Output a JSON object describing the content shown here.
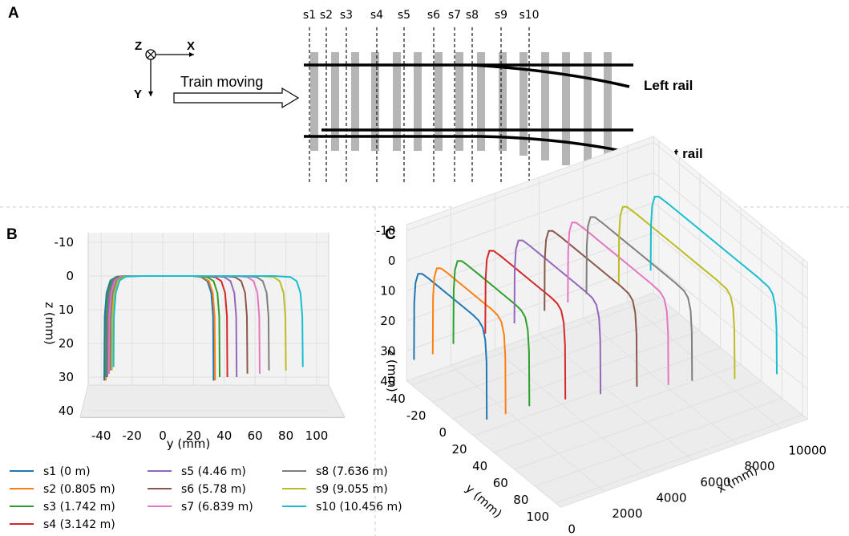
{
  "panel_labels": {
    "a": "A",
    "b": "B",
    "c": "C"
  },
  "schematic": {
    "section_labels": [
      "s1",
      "s2",
      "s3",
      "s4",
      "s5",
      "s6",
      "s7",
      "s8",
      "s9",
      "s10"
    ],
    "left_rail_label": "Left rail",
    "right_rail_label": "Right rail",
    "train_label": "Train moving",
    "axis_letters": {
      "z": "Z",
      "x": "X",
      "y": "Y"
    }
  },
  "chart_data": [
    {
      "type": "line",
      "panel": "B",
      "title": "",
      "xlabel": "y (mm)",
      "ylabel": "z (mm)",
      "xlim": [
        -45,
        105
      ],
      "ylim": [
        40,
        -12
      ],
      "x_ticks": [
        -40,
        -20,
        0,
        20,
        40,
        60,
        80,
        100
      ],
      "y_ticks": [
        -10,
        0,
        10,
        20,
        30,
        40
      ],
      "grid": true,
      "series": [
        {
          "name": "s1 (0 m)",
          "color": "#1f77b4",
          "outer_end": -38,
          "shift": 0,
          "depth": 31
        },
        {
          "name": "s2 (0.805 m)",
          "color": "#ff7f0e",
          "outer_end": -37,
          "shift": 1,
          "depth": 31
        },
        {
          "name": "s3 (1.742 m)",
          "color": "#2ca02c",
          "outer_end": -37,
          "shift": 4,
          "depth": 30
        },
        {
          "name": "s4 (3.142 m)",
          "color": "#d62728",
          "outer_end": -36,
          "shift": 9,
          "depth": 30
        },
        {
          "name": "s5 (4.46 m)",
          "color": "#9467bd",
          "outer_end": -36,
          "shift": 15,
          "depth": 30
        },
        {
          "name": "s6 (5.78 m)",
          "color": "#8c564b",
          "outer_end": -35,
          "shift": 22,
          "depth": 29
        },
        {
          "name": "s7 (6.839 m)",
          "color": "#e377c2",
          "outer_end": -35,
          "shift": 30,
          "depth": 29
        },
        {
          "name": "s8 (7.636 m)",
          "color": "#7f7f7f",
          "outer_end": -34,
          "shift": 36,
          "depth": 28
        },
        {
          "name": "s9 (9.055 m)",
          "color": "#bcbd22",
          "outer_end": -33,
          "shift": 47,
          "depth": 28
        },
        {
          "name": "s10 (10.456 m)",
          "color": "#17becf",
          "outer_end": -32,
          "shift": 58,
          "depth": 27
        }
      ]
    },
    {
      "type": "line",
      "panel": "C",
      "title": "",
      "xlabel": "x (mm)",
      "ylabel": "y (mm)",
      "zlabel": "z (mm)",
      "x_ticks": [
        0,
        2000,
        4000,
        6000,
        8000,
        10000
      ],
      "y_ticks": [
        -40,
        -20,
        0,
        20,
        40,
        60,
        80,
        100
      ],
      "z_ticks": [
        -10,
        0,
        10,
        20,
        30,
        40
      ],
      "x_values": [
        0,
        805,
        1742,
        3142,
        4460,
        5780,
        6839,
        7636,
        9055,
        10456
      ],
      "grid": true
    }
  ],
  "legend": [
    {
      "label": "s1 (0 m)",
      "color": "#1f77b4"
    },
    {
      "label": "s2 (0.805 m)",
      "color": "#ff7f0e"
    },
    {
      "label": "s3 (1.742 m)",
      "color": "#2ca02c"
    },
    {
      "label": "s4 (3.142 m)",
      "color": "#d62728"
    },
    {
      "label": "s5 (4.46 m)",
      "color": "#9467bd"
    },
    {
      "label": "s6 (5.78 m)",
      "color": "#8c564b"
    },
    {
      "label": "s7 (6.839 m)",
      "color": "#e377c2"
    },
    {
      "label": "s8 (7.636 m)",
      "color": "#7f7f7f"
    },
    {
      "label": "s9 (9.055 m)",
      "color": "#bcbd22"
    },
    {
      "label": "s10 (10.456 m)",
      "color": "#17becf"
    }
  ]
}
